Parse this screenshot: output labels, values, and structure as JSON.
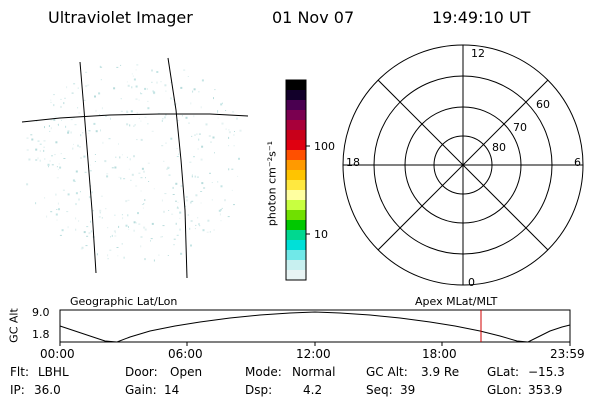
{
  "header": {
    "instrument": "Ultraviolet Imager",
    "date": "01 Nov 07",
    "time": "19:49:10 UT"
  },
  "colorbar": {
    "unit_label": "photon cm⁻²s⁻¹",
    "tick_labels": [
      "100",
      "10"
    ],
    "colors": [
      "#000000",
      "#12002a",
      "#4a0050",
      "#7a0050",
      "#a8003a",
      "#c8001a",
      "#e00010",
      "#ff5000",
      "#ff9a00",
      "#ffc400",
      "#ffe840",
      "#ffffa0",
      "#c8ff40",
      "#70e000",
      "#00c800",
      "#00d890",
      "#00e0d8",
      "#70e8e8",
      "#c8f0f0",
      "#e8f4f4"
    ]
  },
  "panels": {
    "geo_label": "Geographic Lat/Lon",
    "mag_label": "Apex MLat/MLT",
    "polar_labels": {
      "top": "12",
      "left": "18",
      "right": "6",
      "bottom": "0"
    },
    "lat_labels": [
      "60",
      "70",
      "80"
    ]
  },
  "gc_plot": {
    "ylabel": "GC Alt",
    "yticks": [
      "9.0",
      "1.8"
    ],
    "xticks": [
      "00:00",
      "06:00",
      "12:00",
      "18:00",
      "23:59"
    ],
    "marker_color": "#d00000"
  },
  "info": [
    [
      {
        "k": "Flt:",
        "v": "LBHL"
      },
      {
        "k": "Door:",
        "v": "Open"
      },
      {
        "k": "Mode:",
        "v": "Normal"
      },
      {
        "k": "GC Alt:",
        "v": "3.9 Re"
      },
      {
        "k": "GLat:",
        "v": "−15.3"
      }
    ],
    [
      {
        "k": "IP:",
        "v": "36.0"
      },
      {
        "k": "Gain:",
        "v": "14"
      },
      {
        "k": "Dsp:",
        "v": "4.2"
      },
      {
        "k": "Seq:",
        "v": "39"
      },
      {
        "k": "GLon:",
        "v": "353.9"
      }
    ]
  ]
}
